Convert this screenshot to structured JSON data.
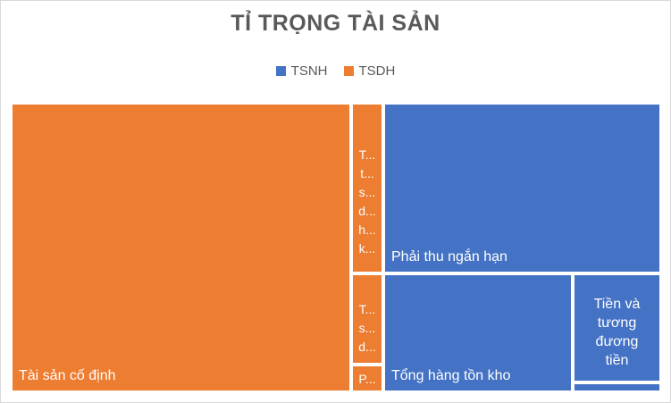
{
  "chart_data": {
    "type": "treemap",
    "title": "TỈ TRỌNG TÀI SẢN",
    "legend": [
      {
        "name": "TSNH",
        "color": "#4472c4"
      },
      {
        "name": "TSDH",
        "color": "#ed7d31"
      }
    ],
    "legend_position": "top",
    "colors": {
      "TSNH": "#4472c4",
      "TSDH": "#ed7d31",
      "border": "#ffffff"
    },
    "nodes": [
      {
        "group": "TSDH",
        "label": "Tài sản cố định"
      },
      {
        "group": "TSDH",
        "label": "T... t... s... d... h... k..."
      },
      {
        "group": "TSDH",
        "label": "T... s... d..."
      },
      {
        "group": "TSDH",
        "label": "P..."
      },
      {
        "group": "TSNH",
        "label": "Phải thu ngắn hạn"
      },
      {
        "group": "TSNH",
        "label": "Tổng hàng tồn kho"
      },
      {
        "group": "TSNH",
        "label": "Tiền và tương đương tiền"
      },
      {
        "group": "TSNH",
        "label": ""
      }
    ]
  }
}
